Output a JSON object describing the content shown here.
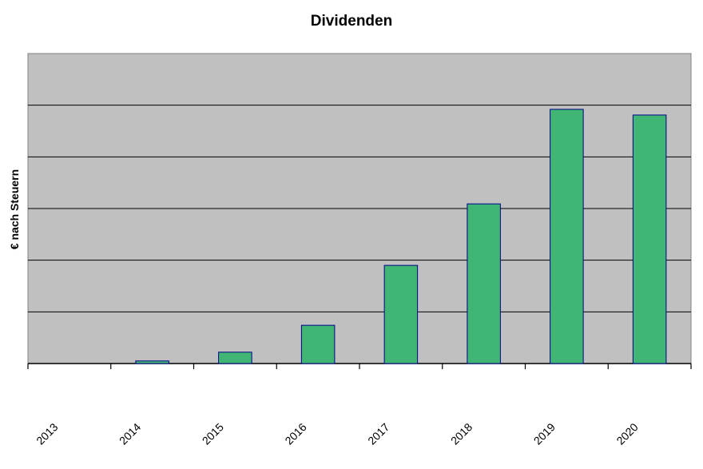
{
  "chart_data": {
    "type": "bar",
    "title": "Dividenden",
    "xlabel": "",
    "ylabel": "€ nach Steuern",
    "categories": [
      "2013",
      "2014",
      "2015",
      "2016",
      "2017",
      "2018",
      "2019",
      "2020"
    ],
    "values": [
      0,
      0.05,
      0.22,
      0.74,
      1.9,
      3.09,
      4.92,
      4.81
    ],
    "ylim": [
      0,
      6
    ],
    "grid": true,
    "y_tick_labels_shown": false,
    "colors": {
      "bar_fill": "#41b574",
      "bar_stroke": "#00008b",
      "plot_bg": "#c0c0c0",
      "grid": "#000000"
    }
  }
}
